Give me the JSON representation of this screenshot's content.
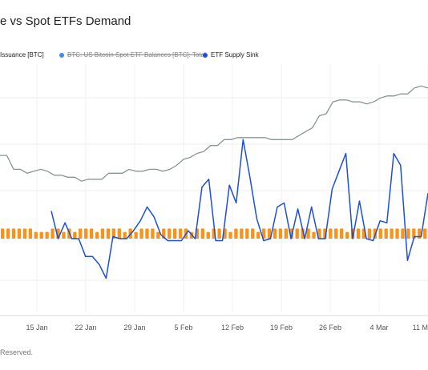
{
  "chart_data": {
    "type": "line",
    "title": "e vs Spot ETFs Demand",
    "legend": [
      {
        "name": "Issuance [BTC]",
        "color": "#f7931a",
        "visible": true
      },
      {
        "name": "BTC: US Bitcoin Spot ETF Balances [BTC]: Total",
        "color": "#3c8ef0",
        "visible": false
      },
      {
        "name": "ETF Supply Sink",
        "color": "#1d4fd8",
        "visible": true
      }
    ],
    "x_tick_labels": [
      "15 Jan",
      "22 Jan",
      "29 Jan",
      "5 Feb",
      "12 Feb",
      "19 Feb",
      "26 Feb",
      "4 Mar",
      "11 M"
    ],
    "grid": true,
    "grey_series": [
      0.42,
      0.42,
      0.35,
      0.35,
      0.33,
      0.34,
      0.35,
      0.34,
      0.32,
      0.32,
      0.31,
      0.31,
      0.29,
      0.3,
      0.3,
      0.3,
      0.33,
      0.33,
      0.33,
      0.35,
      0.34,
      0.34,
      0.35,
      0.35,
      0.34,
      0.35,
      0.37,
      0.4,
      0.41,
      0.43,
      0.44,
      0.47,
      0.47,
      0.5,
      0.5,
      0.51,
      0.51,
      0.51,
      0.51,
      0.51,
      0.5,
      0.5,
      0.5,
      0.5,
      0.52,
      0.54,
      0.56,
      0.62,
      0.63,
      0.69,
      0.7,
      0.7,
      0.69,
      0.69,
      0.68,
      0.69,
      0.71,
      0.72,
      0.72,
      0.73,
      0.73,
      0.76,
      0.77,
      0.76
    ],
    "issuance_bars": [
      0.03,
      0.03,
      0.03,
      0.03,
      0.03,
      0.03,
      0.02,
      0.02,
      0.02,
      0.03,
      0.03,
      0.02,
      0.03,
      0.02,
      0.03,
      0.03,
      0.03,
      0.02,
      0.03,
      0.03,
      0.03,
      0.03,
      0.02,
      0.03,
      0.02,
      0.03,
      0.03,
      0.03,
      0.02,
      0.03,
      0.03,
      0.03,
      0.03,
      0.03,
      0.02,
      0.03,
      0.03,
      0.02,
      0.03,
      0.03,
      0.03,
      0.02,
      0.03,
      0.03,
      0.03,
      0.03,
      0.02,
      0.03,
      0.03,
      0.03,
      0.03,
      0.03,
      0.03,
      0.03,
      0.03,
      0.03,
      0.02,
      0.03,
      0.03,
      0.03,
      0.03,
      0.03,
      0.02,
      0.03,
      0.03,
      0.03,
      0.03,
      0.03,
      0.03,
      0.03,
      0.03,
      0.03,
      0.03,
      0.03,
      0.03,
      0.03,
      0.03
    ],
    "etf_supply_sink": [
      0.14,
      0.0,
      0.08,
      0.0,
      0.0,
      -0.09,
      -0.09,
      -0.13,
      -0.2,
      0.01,
      0.0,
      0.0,
      0.04,
      0.09,
      0.16,
      0.11,
      0.02,
      -0.01,
      -0.01,
      -0.01,
      0.04,
      0.0,
      0.26,
      0.3,
      -0.01,
      -0.01,
      0.27,
      0.18,
      0.5,
      0.31,
      0.1,
      -0.01,
      0.0,
      0.16,
      0.18,
      0.0,
      0.15,
      0.0,
      0.16,
      0.0,
      0.0,
      0.25,
      0.34,
      0.43,
      0.0,
      0.19,
      0.0,
      -0.01,
      0.09,
      0.08,
      0.43,
      0.37,
      -0.11,
      0.01,
      0.01,
      0.23
    ]
  },
  "footer": "Reserved."
}
